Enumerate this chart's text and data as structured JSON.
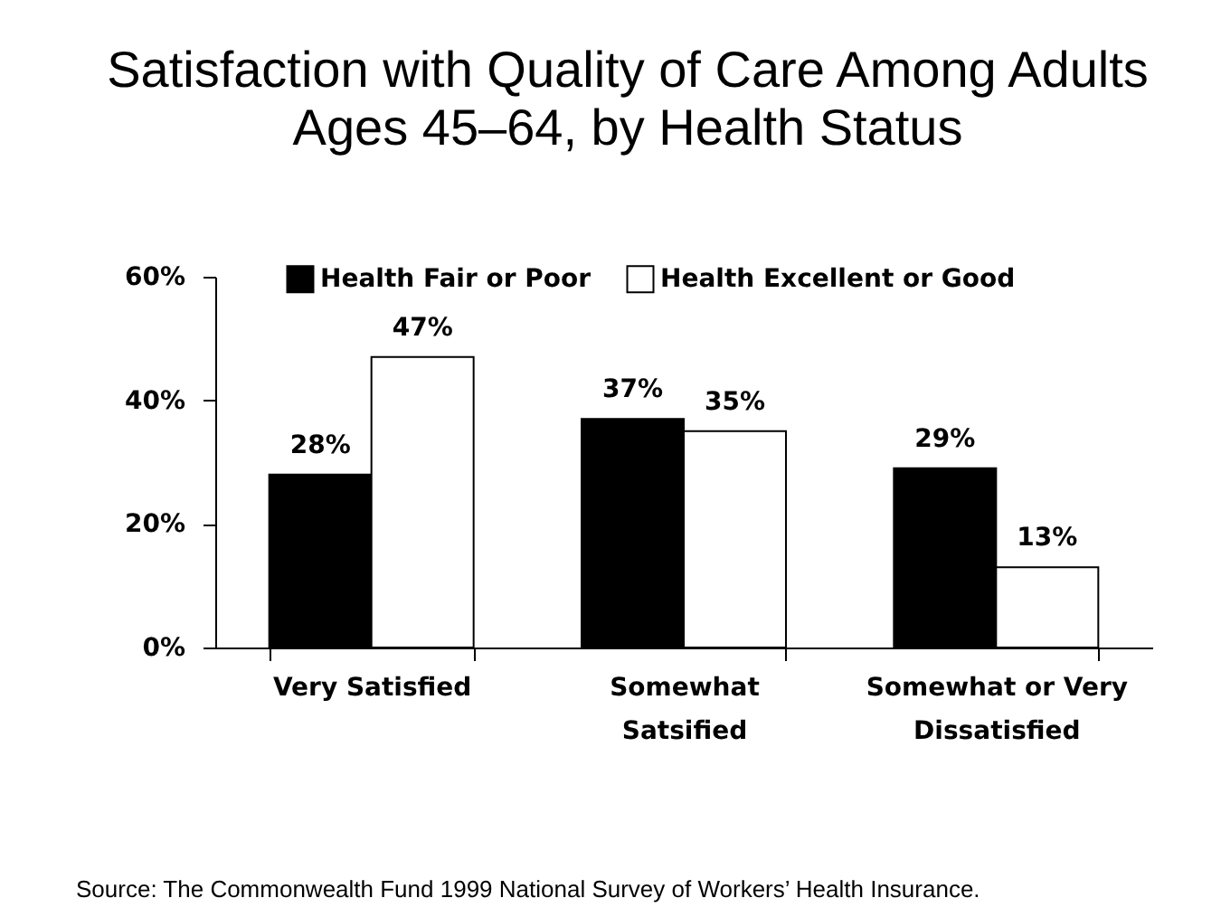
{
  "chart_data": {
    "type": "bar",
    "title": "Satisfaction with Quality of Care Among Adults Ages 45–64, by Health Status",
    "categories": [
      "Very Satisfied",
      "Somewhat Satsified",
      "Somewhat or Very Dissatisfied"
    ],
    "series": [
      {
        "name": "Health Fair or Poor",
        "color": "#000000",
        "values": [
          28,
          37,
          29
        ],
        "value_labels": [
          "28%",
          "37%",
          "29%"
        ]
      },
      {
        "name": "Health Excellent or Good",
        "color": "#ffffff",
        "values": [
          47,
          35,
          13
        ],
        "value_labels": [
          "47%",
          "35%",
          "13%"
        ]
      }
    ],
    "ylim": [
      0,
      60
    ],
    "yticks": [
      {
        "value": 0,
        "label": "0%"
      },
      {
        "value": 20,
        "label": "20%"
      },
      {
        "value": 40,
        "label": "40%"
      },
      {
        "value": 60,
        "label": "60%"
      }
    ],
    "grid": false,
    "legend": "top",
    "annotations": [
      "Source: The Commonwealth Fund 1999 National Survey of Workers’ Health Insurance."
    ]
  }
}
